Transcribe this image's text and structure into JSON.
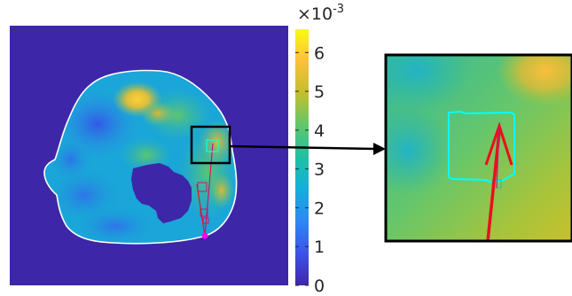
{
  "colorbar": {
    "multiplier_base": "×10",
    "multiplier_exponent": "-3",
    "ticks": [
      "0",
      "1",
      "2",
      "3",
      "4",
      "5",
      "6"
    ],
    "colormap": "parula",
    "top_color": "#f9fb0e",
    "bottom_color": "#3e26a8"
  },
  "colors": {
    "background_region": "#3e26a8",
    "boundary": "#ffffff",
    "roi_box": "#00ffff",
    "inset_frame": "#000000",
    "vector": "#e8101c",
    "trajectory": "#c8186c",
    "origin_marker": "#ff00ff"
  },
  "icons": {
    "connector": "arrow-right-icon",
    "vector": "vector-arrow-icon",
    "origin": "dot-marker-icon"
  }
}
